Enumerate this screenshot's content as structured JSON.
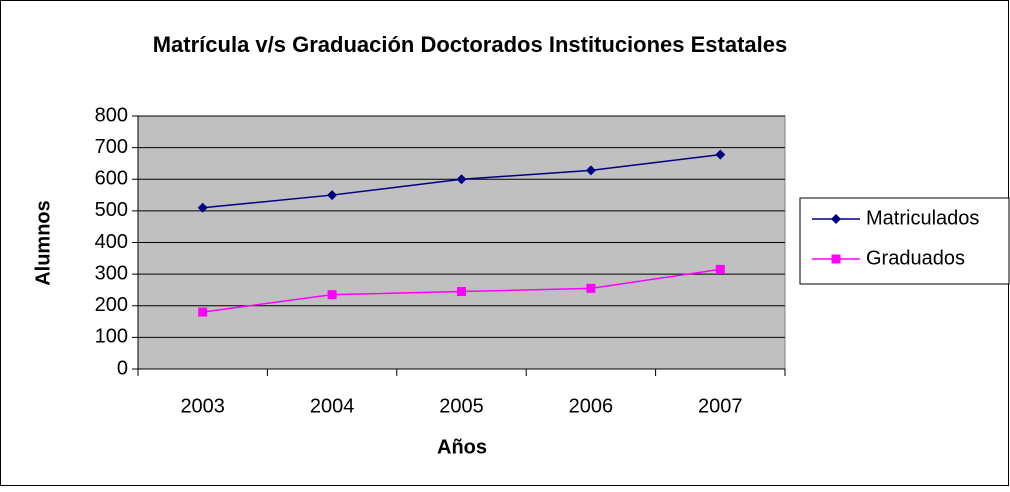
{
  "chart_data": {
    "type": "line",
    "title": "Matrícula v/s Graduación Doctorados Instituciones Estatales",
    "x_label": "Años",
    "y_label": "Alumnos",
    "categories": [
      "2003",
      "2004",
      "2005",
      "2006",
      "2007"
    ],
    "series": [
      {
        "name": "Matriculados",
        "color": "#000080",
        "marker": "diamond",
        "values": [
          510,
          550,
          600,
          628,
          678
        ]
      },
      {
        "name": "Graduados",
        "color": "#ff00ff",
        "marker": "square",
        "values": [
          180,
          235,
          245,
          255,
          315
        ]
      }
    ],
    "ylim": [
      0,
      800
    ],
    "yticks": [
      0,
      100,
      200,
      300,
      400,
      500,
      600,
      700,
      800
    ],
    "grid": true,
    "legend": "right",
    "plot_background": "#c0c0c0"
  }
}
